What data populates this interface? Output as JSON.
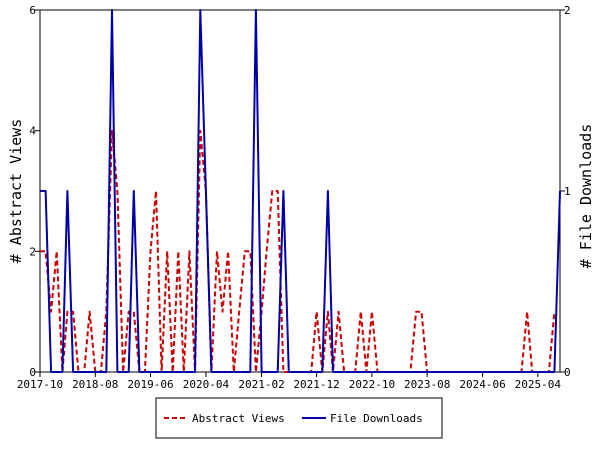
{
  "chart_data": {
    "type": "line",
    "y_left_label": "# Abstract Views",
    "y_right_label": "# File Downloads",
    "x_tick_labels": [
      "2017-10",
      "2018-08",
      "2019-06",
      "2020-04",
      "2021-02",
      "2021-12",
      "2022-10",
      "2023-08",
      "2024-06",
      "2025-04"
    ],
    "y_left_ticks": [
      "0",
      "2",
      "4",
      "6"
    ],
    "y_right_ticks": [
      "0",
      "1",
      "2"
    ],
    "y_left_range": [
      0,
      6
    ],
    "y_right_range": [
      0,
      2
    ],
    "x_range": [
      "2017-10",
      "2025-08"
    ],
    "legend_position": "bottom",
    "grid": false,
    "series": [
      {
        "name": "Abstract Views",
        "axis": "left",
        "color": "#cc0000",
        "line_style": "dashed",
        "points": [
          [
            "2017-10-01",
            2
          ],
          [
            "2017-11-01",
            2
          ],
          [
            "2017-12-01",
            1
          ],
          [
            "2018-01-01",
            2
          ],
          [
            "2018-02-01",
            0
          ],
          [
            "2018-03-01",
            1
          ],
          [
            "2018-04-01",
            1
          ],
          [
            "2018-05-01",
            0
          ],
          [
            "2018-06-01",
            0
          ],
          [
            "2018-07-01",
            1
          ],
          [
            "2018-08-01",
            0
          ],
          [
            "2018-09-01",
            0
          ],
          [
            "2018-10-01",
            1
          ],
          [
            "2018-11-01",
            4
          ],
          [
            "2018-12-01",
            3
          ],
          [
            "2019-01-01",
            0
          ],
          [
            "2019-02-01",
            1
          ],
          [
            "2019-03-01",
            1
          ],
          [
            "2019-04-01",
            0
          ],
          [
            "2019-05-01",
            0
          ],
          [
            "2019-06-01",
            2
          ],
          [
            "2019-07-01",
            3
          ],
          [
            "2019-08-01",
            0
          ],
          [
            "2019-09-01",
            2
          ],
          [
            "2019-10-01",
            0
          ],
          [
            "2019-11-01",
            2
          ],
          [
            "2019-12-01",
            0
          ],
          [
            "2020-01-01",
            2
          ],
          [
            "2020-02-01",
            0
          ],
          [
            "2020-03-01",
            4
          ],
          [
            "2020-04-01",
            3
          ],
          [
            "2020-05-01",
            0
          ],
          [
            "2020-06-01",
            2
          ],
          [
            "2020-07-01",
            1
          ],
          [
            "2020-08-01",
            2
          ],
          [
            "2020-09-01",
            0
          ],
          [
            "2020-10-01",
            1
          ],
          [
            "2020-11-01",
            2
          ],
          [
            "2020-12-01",
            2
          ],
          [
            "2021-01-01",
            0
          ],
          [
            "2021-02-01",
            1
          ],
          [
            "2021-03-01",
            2
          ],
          [
            "2021-04-01",
            3
          ],
          [
            "2021-05-01",
            3
          ],
          [
            "2021-06-01",
            0
          ],
          [
            "2021-07-01",
            0
          ],
          [
            "2021-08-01",
            0
          ],
          [
            "2021-09-01",
            0
          ],
          [
            "2021-10-01",
            0
          ],
          [
            "2021-11-01",
            0
          ],
          [
            "2021-12-01",
            1
          ],
          [
            "2022-01-01",
            0
          ],
          [
            "2022-02-01",
            1
          ],
          [
            "2022-03-01",
            0
          ],
          [
            "2022-04-01",
            1
          ],
          [
            "2022-05-01",
            0
          ],
          [
            "2022-06-01",
            0
          ],
          [
            "2022-07-01",
            0
          ],
          [
            "2022-08-01",
            1
          ],
          [
            "2022-09-01",
            0
          ],
          [
            "2022-10-01",
            1
          ],
          [
            "2022-11-01",
            0
          ],
          [
            "2022-12-01",
            0
          ],
          [
            "2023-01-01",
            0
          ],
          [
            "2023-02-01",
            0
          ],
          [
            "2023-03-01",
            0
          ],
          [
            "2023-04-01",
            0
          ],
          [
            "2023-05-01",
            0
          ],
          [
            "2023-06-01",
            1
          ],
          [
            "2023-07-01",
            1
          ],
          [
            "2023-08-01",
            0
          ],
          [
            "2023-09-01",
            0
          ],
          [
            "2024-01-01",
            0
          ],
          [
            "2024-06-01",
            0
          ],
          [
            "2024-12-01",
            0
          ],
          [
            "2025-01-01",
            0
          ],
          [
            "2025-02-01",
            1
          ],
          [
            "2025-03-01",
            0
          ],
          [
            "2025-04-01",
            0
          ],
          [
            "2025-05-01",
            0
          ],
          [
            "2025-06-01",
            0
          ],
          [
            "2025-07-01",
            1
          ]
        ]
      },
      {
        "name": "File Downloads",
        "axis": "right",
        "color": "#0000aa",
        "line_style": "solid",
        "points": [
          [
            "2017-10-01",
            1
          ],
          [
            "2017-11-01",
            1
          ],
          [
            "2017-12-01",
            0
          ],
          [
            "2018-01-01",
            0
          ],
          [
            "2018-02-01",
            0
          ],
          [
            "2018-03-01",
            1
          ],
          [
            "2018-04-01",
            0
          ],
          [
            "2018-05-01",
            0
          ],
          [
            "2018-06-01",
            0
          ],
          [
            "2018-07-01",
            0
          ],
          [
            "2018-08-01",
            0
          ],
          [
            "2018-09-01",
            0
          ],
          [
            "2018-10-01",
            0
          ],
          [
            "2018-11-01",
            2
          ],
          [
            "2018-12-01",
            0
          ],
          [
            "2019-01-01",
            0
          ],
          [
            "2019-02-01",
            0
          ],
          [
            "2019-03-01",
            1
          ],
          [
            "2019-04-01",
            0
          ],
          [
            "2019-05-01",
            0
          ],
          [
            "2019-06-01",
            0
          ],
          [
            "2019-07-01",
            0
          ],
          [
            "2019-08-01",
            0
          ],
          [
            "2019-09-01",
            0
          ],
          [
            "2019-10-01",
            0
          ],
          [
            "2019-11-01",
            0
          ],
          [
            "2019-12-01",
            0
          ],
          [
            "2020-01-01",
            0
          ],
          [
            "2020-02-01",
            0
          ],
          [
            "2020-03-01",
            2
          ],
          [
            "2020-04-01",
            1
          ],
          [
            "2020-05-01",
            0
          ],
          [
            "2020-06-01",
            0
          ],
          [
            "2020-07-01",
            0
          ],
          [
            "2020-08-01",
            0
          ],
          [
            "2020-09-01",
            0
          ],
          [
            "2020-10-01",
            0
          ],
          [
            "2020-11-01",
            0
          ],
          [
            "2020-12-01",
            0
          ],
          [
            "2021-01-01",
            2
          ],
          [
            "2021-02-01",
            0
          ],
          [
            "2021-03-01",
            0
          ],
          [
            "2021-04-01",
            0
          ],
          [
            "2021-05-01",
            0
          ],
          [
            "2021-06-01",
            1
          ],
          [
            "2021-07-01",
            0
          ],
          [
            "2021-08-01",
            0
          ],
          [
            "2021-09-01",
            0
          ],
          [
            "2021-10-01",
            0
          ],
          [
            "2021-11-01",
            0
          ],
          [
            "2021-12-01",
            0
          ],
          [
            "2022-01-01",
            0
          ],
          [
            "2022-02-01",
            1
          ],
          [
            "2022-03-01",
            0
          ],
          [
            "2022-04-01",
            0
          ],
          [
            "2022-06-01",
            0
          ],
          [
            "2023-01-01",
            0
          ],
          [
            "2024-01-01",
            0
          ],
          [
            "2025-01-01",
            0
          ],
          [
            "2025-06-01",
            0
          ],
          [
            "2025-07-01",
            0
          ],
          [
            "2025-08-01",
            1
          ]
        ]
      }
    ]
  },
  "legend": {
    "items": [
      {
        "label": "Abstract Views",
        "color": "#cc0000",
        "style": "dashed"
      },
      {
        "label": "File Downloads",
        "color": "#0000aa",
        "style": "solid"
      }
    ]
  }
}
